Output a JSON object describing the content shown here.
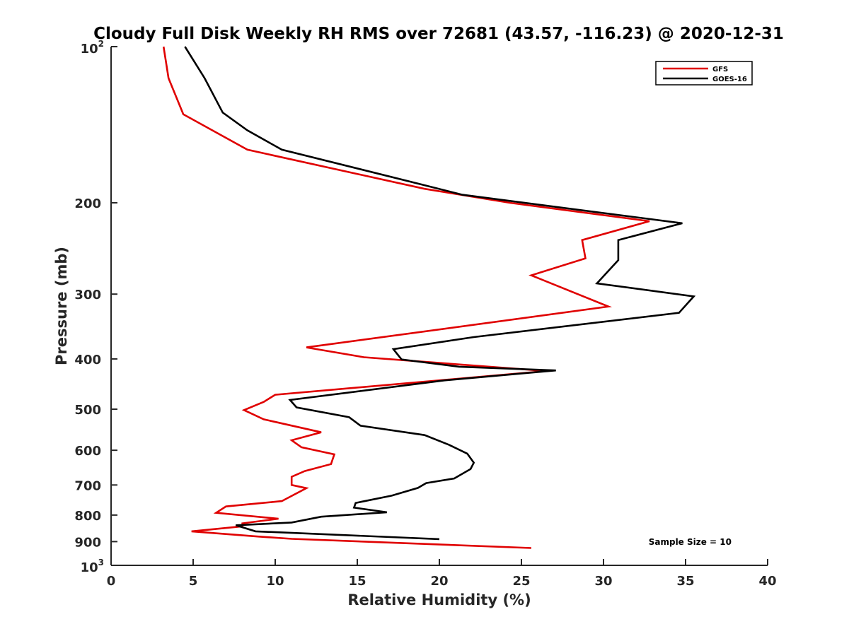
{
  "chart_data": {
    "type": "line",
    "title": "Cloudy Full Disk Weekly RH RMS over 72681 (43.57, -116.23) @ 2020-12-31",
    "xlabel": "Relative Humidity (%)",
    "ylabel": "Pressure (mb)",
    "xlim": [
      0,
      40
    ],
    "ylim": [
      100,
      1000
    ],
    "y_scale": "log",
    "y_reversed": true,
    "grid": false,
    "legend_position": "top-right",
    "x_ticks": [
      "0",
      "5",
      "10",
      "15",
      "20",
      "25",
      "30",
      "35",
      "40"
    ],
    "y_ticks": [
      {
        "value": 100,
        "base": "10",
        "exp": "2"
      },
      {
        "value": 200,
        "label": "200"
      },
      {
        "value": 300,
        "label": "300"
      },
      {
        "value": 400,
        "label": "400"
      },
      {
        "value": 500,
        "label": "500"
      },
      {
        "value": 600,
        "label": "600"
      },
      {
        "value": 700,
        "label": "700"
      },
      {
        "value": 800,
        "label": "800"
      },
      {
        "value": 900,
        "label": "900"
      },
      {
        "value": 1000,
        "base": "10",
        "exp": "3"
      }
    ],
    "annotation": "Sample Size = 10",
    "series": [
      {
        "name": "GFS",
        "color": "#e00000",
        "points": [
          [
            3.2,
            100
          ],
          [
            3.5,
            115
          ],
          [
            4.4,
            135
          ],
          [
            8.3,
            158
          ],
          [
            19.1,
            188
          ],
          [
            24.3,
            200
          ],
          [
            32.8,
            217
          ],
          [
            28.7,
            236
          ],
          [
            28.9,
            256
          ],
          [
            25.6,
            276
          ],
          [
            30.3,
            317
          ],
          [
            11.9,
            380
          ],
          [
            15.4,
            397
          ],
          [
            26.5,
            422
          ],
          [
            10.0,
            469
          ],
          [
            9.3,
            484
          ],
          [
            8.1,
            502
          ],
          [
            9.3,
            523
          ],
          [
            12.8,
            554
          ],
          [
            11.0,
            574
          ],
          [
            11.6,
            592
          ],
          [
            13.6,
            611
          ],
          [
            13.4,
            638
          ],
          [
            11.8,
            658
          ],
          [
            11.0,
            675
          ],
          [
            11.0,
            700
          ],
          [
            11.9,
            710
          ],
          [
            10.4,
            752
          ],
          [
            7.0,
            770
          ],
          [
            6.4,
            792
          ],
          [
            10.2,
            813
          ],
          [
            8.0,
            830
          ],
          [
            8.0,
            841
          ],
          [
            4.9,
            860
          ],
          [
            9.0,
            880
          ],
          [
            11.0,
            889
          ],
          [
            25.6,
            926
          ]
        ]
      },
      {
        "name": "GOES-16",
        "color": "#000000",
        "points": [
          [
            4.5,
            100
          ],
          [
            5.7,
            115
          ],
          [
            6.8,
            134
          ],
          [
            8.3,
            145
          ],
          [
            10.4,
            158
          ],
          [
            19.1,
            185
          ],
          [
            21.4,
            193
          ],
          [
            34.8,
            219
          ],
          [
            30.9,
            236
          ],
          [
            30.9,
            258
          ],
          [
            29.6,
            286
          ],
          [
            35.5,
            303
          ],
          [
            34.6,
            326
          ],
          [
            22.1,
            363
          ],
          [
            17.2,
            383
          ],
          [
            17.7,
            401
          ],
          [
            21.2,
            414
          ],
          [
            27.1,
            421
          ],
          [
            20.3,
            440
          ],
          [
            10.9,
            480
          ],
          [
            11.3,
            496
          ],
          [
            14.5,
            518
          ],
          [
            15.2,
            538
          ],
          [
            19.1,
            561
          ],
          [
            20.6,
            586
          ],
          [
            21.7,
            609
          ],
          [
            22.1,
            634
          ],
          [
            21.9,
            652
          ],
          [
            20.9,
            680
          ],
          [
            19.2,
            694
          ],
          [
            18.7,
            709
          ],
          [
            17.1,
            734
          ],
          [
            14.9,
            758
          ],
          [
            14.8,
            774
          ],
          [
            16.8,
            790
          ],
          [
            12.8,
            806
          ],
          [
            11.0,
            827
          ],
          [
            7.6,
            837
          ],
          [
            8.8,
            860
          ],
          [
            20.0,
            890
          ]
        ]
      }
    ]
  }
}
